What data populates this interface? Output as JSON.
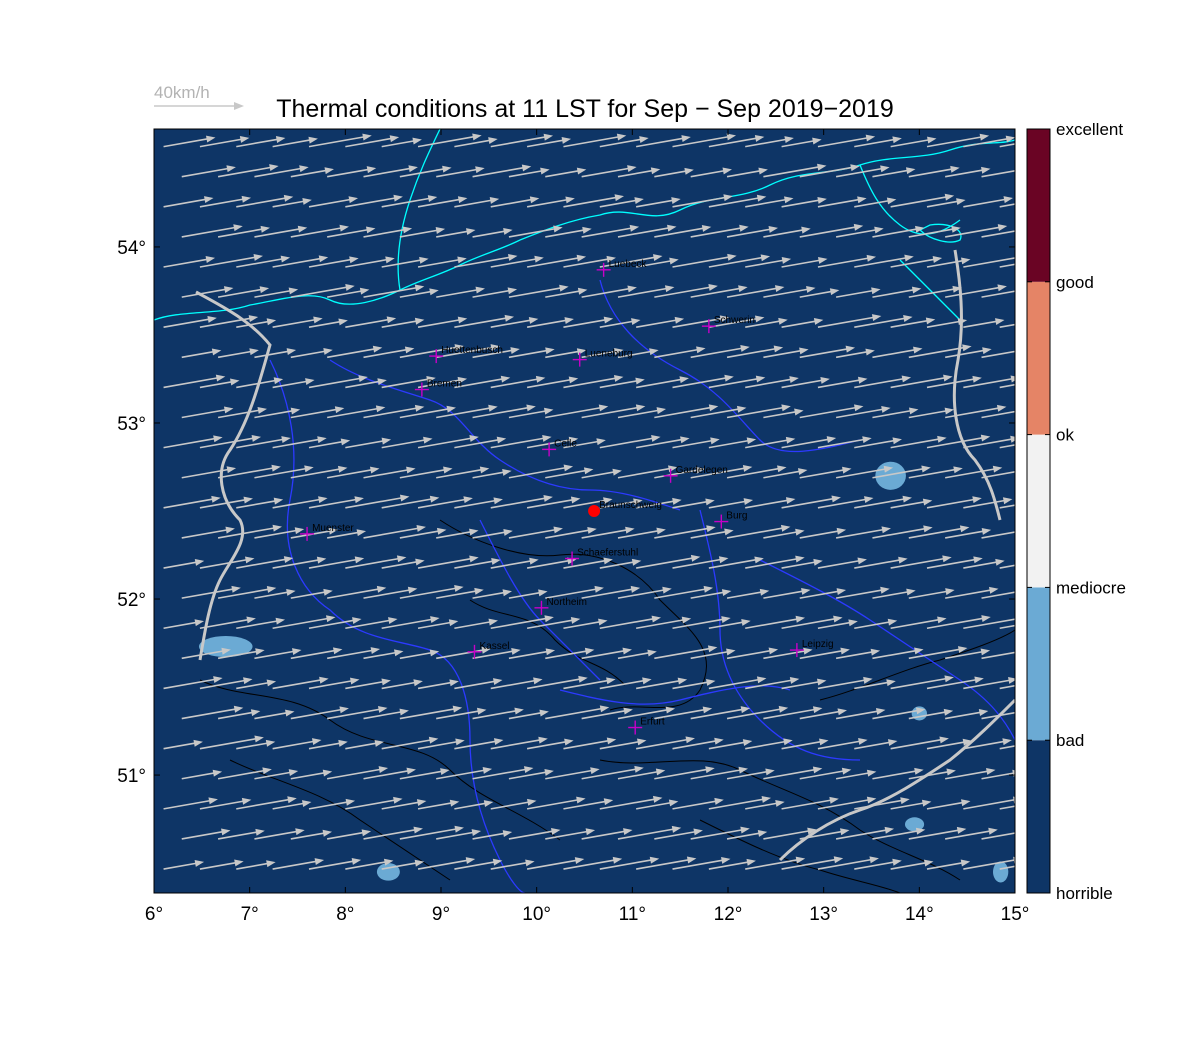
{
  "title": "Thermal conditions at 11 LST for Sep − Sep  2019−2019",
  "wind_scale_label": "40km/h",
  "map": {
    "lon_range": [
      6.0,
      15.0
    ],
    "lat_range": [
      50.33,
      54.67
    ],
    "lon_ticks": [
      6,
      7,
      8,
      9,
      10,
      11,
      12,
      13,
      14,
      15
    ],
    "lat_ticks": [
      51,
      52,
      53,
      54
    ],
    "lon_tick_labels": [
      "6°",
      "7°",
      "8°",
      "9°",
      "10°",
      "11°",
      "12°",
      "13°",
      "14°",
      "15°"
    ],
    "lat_tick_labels": [
      "51°",
      "52°",
      "53°",
      "54°"
    ],
    "background_class": "horrible",
    "wind": {
      "direction_deg_toward": 80,
      "typical_speed_kmh": 36,
      "grid_spacing_deg": 0.38
    },
    "bad_patches": [
      {
        "lon": 6.75,
        "lat": 51.73,
        "r_lon": 0.28,
        "r_lat": 0.06
      },
      {
        "lon": 8.45,
        "lat": 50.45,
        "r_lon": 0.12,
        "r_lat": 0.05
      },
      {
        "lon": 13.7,
        "lat": 52.7,
        "r_lon": 0.16,
        "r_lat": 0.08
      },
      {
        "lon": 14.0,
        "lat": 51.35,
        "r_lon": 0.08,
        "r_lat": 0.04
      },
      {
        "lon": 13.95,
        "lat": 50.72,
        "r_lon": 0.1,
        "r_lat": 0.04
      },
      {
        "lon": 14.85,
        "lat": 50.45,
        "r_lon": 0.08,
        "r_lat": 0.06
      }
    ],
    "cities": [
      {
        "name": "Luebeck",
        "lon": 10.7,
        "lat": 53.87
      },
      {
        "name": "Schwerin",
        "lon": 11.8,
        "lat": 53.55
      },
      {
        "name": "Huettenbusch",
        "lon": 8.95,
        "lat": 53.38
      },
      {
        "name": "Lueneburg",
        "lon": 10.45,
        "lat": 53.36
      },
      {
        "name": "Bremen",
        "lon": 8.8,
        "lat": 53.19
      },
      {
        "name": "Celle",
        "lon": 10.13,
        "lat": 52.85
      },
      {
        "name": "Gardelegen",
        "lon": 11.4,
        "lat": 52.7
      },
      {
        "name": "Braunschweig",
        "lon": 10.6,
        "lat": 52.5
      },
      {
        "name": "Burg",
        "lon": 11.93,
        "lat": 52.44
      },
      {
        "name": "Muenster",
        "lon": 7.6,
        "lat": 52.37
      },
      {
        "name": "Schaeferstuhl",
        "lon": 10.37,
        "lat": 52.23
      },
      {
        "name": "Northeim",
        "lon": 10.05,
        "lat": 51.95
      },
      {
        "name": "Kassel",
        "lon": 9.35,
        "lat": 51.7
      },
      {
        "name": "Leipzig",
        "lon": 12.72,
        "lat": 51.71
      },
      {
        "name": "Erfurt",
        "lon": 11.03,
        "lat": 51.27
      }
    ],
    "highlight_city": "Braunschweig"
  },
  "colorbar": {
    "classes": [
      {
        "label": "horrible",
        "color": "#0e3566"
      },
      {
        "label": "bad",
        "color": "#6baad4"
      },
      {
        "label": "mediocre",
        "color": "#f2f2f2"
      },
      {
        "label": "ok",
        "color": "#e58466"
      },
      {
        "label": "good",
        "color": "#6a0424"
      }
    ],
    "boundary_labels": [
      "horrible",
      "bad",
      "mediocre",
      "ok",
      "good",
      "excellent"
    ]
  },
  "colors": {
    "ocean_map_bg": "#0e3566",
    "coastline": "#00ffff",
    "borders": "#2c3aff",
    "national_border": "#c8c8c8",
    "wind_arrow": "#c8c8c8",
    "contour": "#000000",
    "city_marker": "#c800c8",
    "highlight_marker": "#ff0000"
  }
}
